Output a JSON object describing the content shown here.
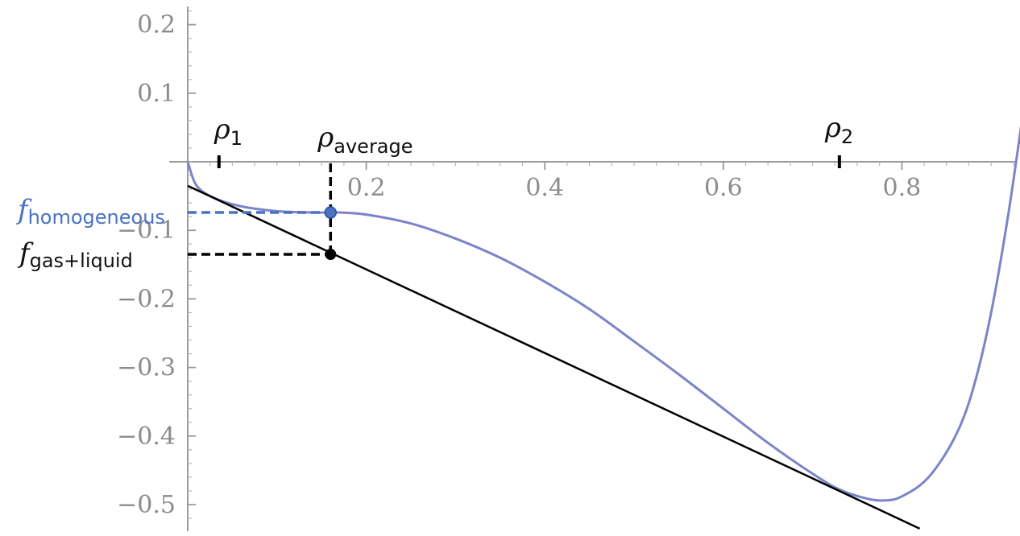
{
  "chart_data": {
    "type": "line",
    "title": "",
    "xlabel": "",
    "ylabel": "",
    "xlim": [
      0,
      0.95
    ],
    "ylim": [
      -0.53,
      0.22
    ],
    "x_ticks": [
      0.2,
      0.4,
      0.6,
      0.8
    ],
    "x_tick_labels": [
      "0.2",
      "0.4",
      "0.6",
      "0.8"
    ],
    "y_ticks": [
      0.2,
      0.1,
      -0.1,
      -0.2,
      -0.3,
      -0.4,
      -0.5
    ],
    "y_tick_labels": [
      "0.2",
      "0.1",
      "−0.1",
      "−0.2",
      "−0.3",
      "−0.4",
      "−0.5"
    ],
    "grid": false,
    "colors": {
      "curve": "#7c84c8",
      "tangent": "#000000",
      "homogeneous": "#4a72c4",
      "axis": "#9a9a9a"
    },
    "series": [
      {
        "x": [
          0,
          0.01,
          0.03,
          0.06,
          0.1,
          0.14,
          0.17,
          0.2,
          0.25,
          0.3,
          0.35,
          0.4,
          0.45,
          0.5,
          0.55,
          0.6,
          0.65,
          0.7,
          0.73,
          0.76,
          0.78,
          0.8,
          0.83,
          0.86,
          0.88,
          0.9,
          0.92,
          0.94,
          0.95
        ],
        "y": [
          0,
          -0.035,
          -0.053,
          -0.065,
          -0.072,
          -0.074,
          -0.074,
          -0.077,
          -0.09,
          -0.112,
          -0.14,
          -0.175,
          -0.215,
          -0.262,
          -0.31,
          -0.36,
          -0.41,
          -0.455,
          -0.478,
          -0.491,
          -0.494,
          -0.488,
          -0.46,
          -0.4,
          -0.33,
          -0.22,
          -0.07,
          0.11,
          0.19
        ]
      },
      {
        "x": [
          0,
          0.82
        ],
        "y": [
          -0.035,
          -0.535
        ]
      }
    ],
    "annotations": {
      "rho1": {
        "symbol": "ρ",
        "subscript": "1",
        "x": 0.035
      },
      "rho_average": {
        "symbol": "ρ",
        "subscript": "average",
        "x": 0.16
      },
      "rho2": {
        "symbol": "ρ",
        "subscript": "2",
        "x": 0.73
      },
      "f_homogeneous": {
        "symbol": "f",
        "subscript": "homogeneous",
        "y": -0.074
      },
      "f_gas_liquid": {
        "symbol": "f",
        "subscript": "gas+liquid",
        "y": -0.135
      }
    }
  }
}
